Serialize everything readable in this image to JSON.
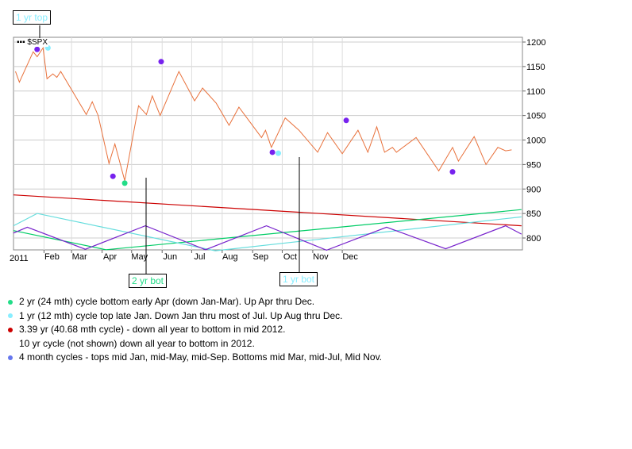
{
  "chart_data": {
    "type": "line",
    "symbol": "$SPX",
    "year_label": "2011",
    "x_labels": [
      "Feb",
      "Mar",
      "Apr",
      "May",
      "Jun",
      "Jul",
      "Aug",
      "Sep",
      "Oct",
      "Nov",
      "Dec"
    ],
    "y_ticks": [
      1200,
      1150,
      1100,
      1050,
      1000,
      950,
      900,
      850,
      800
    ],
    "grid": true,
    "series": [
      {
        "color": "#e8703a",
        "points": [
          [
            "2011-01-03",
            1140
          ],
          [
            "2011-01-07",
            1118
          ],
          [
            "2011-01-21",
            1180
          ],
          [
            "2011-01-25",
            1170
          ],
          [
            "2011-01-31",
            1188
          ],
          [
            "2011-02-04",
            1125
          ],
          [
            "2011-02-10",
            1135
          ],
          [
            "2011-02-14",
            1128
          ],
          [
            "2011-02-18",
            1140
          ],
          [
            "2011-03-16",
            1052
          ],
          [
            "2011-03-22",
            1078
          ],
          [
            "2011-03-28",
            1050
          ],
          [
            "2011-04-08",
            952
          ],
          [
            "2011-04-14",
            992
          ],
          [
            "2011-04-24",
            917
          ],
          [
            "2011-05-08",
            1070
          ],
          [
            "2011-05-16",
            1052
          ],
          [
            "2011-05-22",
            1090
          ],
          [
            "2011-05-30",
            1050
          ],
          [
            "2011-06-18",
            1140
          ],
          [
            "2011-07-04",
            1080
          ],
          [
            "2011-07-12",
            1106
          ],
          [
            "2011-07-26",
            1075
          ],
          [
            "2011-08-08",
            1030
          ],
          [
            "2011-08-18",
            1067
          ],
          [
            "2011-09-10",
            1005
          ],
          [
            "2011-09-14",
            1020
          ],
          [
            "2011-09-20",
            985
          ],
          [
            "2011-10-04",
            1045
          ],
          [
            "2011-10-18",
            1020
          ],
          [
            "2011-11-06",
            975
          ],
          [
            "2011-11-16",
            1015
          ],
          [
            "2011-12-01",
            972
          ],
          [
            "2011-12-17",
            1020
          ],
          [
            "2011-12-27",
            975
          ],
          [
            "2012-01-05",
            1027
          ],
          [
            "2012-01-13",
            975
          ],
          [
            "2012-01-21",
            985
          ],
          [
            "2012-01-25",
            975
          ],
          [
            "2012-02-14",
            1005
          ],
          [
            "2012-03-08",
            937
          ],
          [
            "2012-03-22",
            985
          ],
          [
            "2012-03-28",
            957
          ],
          [
            "2012-04-13",
            1007
          ],
          [
            "2012-04-25",
            950
          ],
          [
            "2012-05-07",
            985
          ],
          [
            "2012-05-15",
            978
          ],
          [
            "2012-05-21",
            980
          ]
        ]
      },
      {
        "color": "#cc0000",
        "points": [
          [
            "2011-01-01",
            888
          ],
          [
            "2012-05-31",
            825
          ]
        ]
      },
      {
        "color": "#00cc66",
        "points": [
          [
            "2011-01-01",
            815
          ],
          [
            "2011-04-05",
            776
          ],
          [
            "2012-05-31",
            858
          ]
        ]
      },
      {
        "color": "#66dddd",
        "points": [
          [
            "2011-01-01",
            825
          ],
          [
            "2011-01-25",
            850
          ],
          [
            "2011-07-25",
            774
          ],
          [
            "2012-05-31",
            843
          ]
        ]
      },
      {
        "color": "#7722cc",
        "points": [
          [
            "2011-01-01",
            810
          ],
          [
            "2011-01-15",
            822
          ],
          [
            "2011-03-15",
            777
          ],
          [
            "2011-05-15",
            825
          ],
          [
            "2011-07-15",
            776
          ],
          [
            "2011-09-15",
            825
          ],
          [
            "2011-11-15",
            775
          ],
          [
            "2012-01-15",
            822
          ],
          [
            "2012-03-15",
            778
          ],
          [
            "2012-05-15",
            825
          ],
          [
            "2012-05-31",
            808
          ]
        ]
      }
    ],
    "markers": [
      {
        "date": "2011-01-25",
        "value": 1185,
        "color": "#7722ee"
      },
      {
        "date": "2011-02-05",
        "value": 1188,
        "color": "#88eeff"
      },
      {
        "date": "2011-04-12",
        "value": 926,
        "color": "#7722ee"
      },
      {
        "date": "2011-04-24",
        "value": 912,
        "color": "#22dd88"
      },
      {
        "date": "2011-05-31",
        "value": 1160,
        "color": "#7722ee"
      },
      {
        "date": "2011-09-21",
        "value": 975,
        "color": "#7722ee"
      },
      {
        "date": "2011-09-27",
        "value": 973,
        "color": "#88eeff"
      },
      {
        "date": "2011-12-05",
        "value": 1040,
        "color": "#7722ee"
      },
      {
        "date": "2012-03-22",
        "value": 935,
        "color": "#7722ee"
      }
    ],
    "annotations": [
      {
        "text": "1 yr top",
        "color": "#88eeff"
      },
      {
        "text": "2 yr bot",
        "color": "#22dd88"
      },
      {
        "text": "1 yr bot",
        "color": "#88eeff"
      }
    ]
  },
  "legend": [
    {
      "color": "#22dd88",
      "text": "2 yr (24 mth) cycle bottom early Apr (down Jan-Mar).  Up Apr thru Dec."
    },
    {
      "color": "#88eeff",
      "text": "1 yr (12 mth) cycle top late Jan.  Down Jan thru most of Jul.  Up Aug thru Dec."
    },
    {
      "color": "#cc0000",
      "text": "3.39 yr (40.68 mth cycle) - down all year to bottom in mid 2012."
    },
    {
      "color": "",
      "text": "10 yr cycle (not shown) down all year to bottom in 2012."
    },
    {
      "color": "#6677ee",
      "text": "4 month cycles - tops mid Jan, mid-May, mid-Sep.  Bottoms mid Mar, mid-Jul, Mid Nov."
    }
  ]
}
